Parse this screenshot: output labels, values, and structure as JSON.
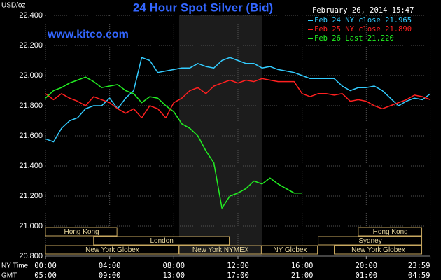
{
  "chart_data": {
    "type": "line",
    "title": "24 Hour Spot Silver (Bid)",
    "subtitle": "www.kitco.com",
    "timestamp": "February 26, 2014 15:47",
    "y_label": "USD/oz",
    "x_label": "NY Time",
    "x2_label": "GMT",
    "title_color": "#3366ff",
    "grid": true,
    "legend": "top-right",
    "xlim": [
      0,
      24
    ],
    "ylim": [
      20.8,
      22.4
    ],
    "yticks": [
      {
        "value": 20.8,
        "label": "20.800"
      },
      {
        "value": 21.0,
        "label": "21.000"
      },
      {
        "value": 21.2,
        "label": "21.200"
      },
      {
        "value": 21.4,
        "label": "21.400"
      },
      {
        "value": 21.6,
        "label": "21.600"
      },
      {
        "value": 21.8,
        "label": "21.800"
      },
      {
        "value": 22.0,
        "label": "22.000"
      },
      {
        "value": 22.2,
        "label": "22.200"
      },
      {
        "value": 22.4,
        "label": "22.400"
      }
    ],
    "xticks": [
      {
        "value": 0,
        "label": "00:00"
      },
      {
        "value": 4,
        "label": "04:00"
      },
      {
        "value": 8,
        "label": "08:00"
      },
      {
        "value": 12,
        "label": "12:00"
      },
      {
        "value": 16,
        "label": "16:00"
      },
      {
        "value": 20,
        "label": "20:00"
      },
      {
        "value": 23.98,
        "label": "23:59"
      }
    ],
    "x2ticks": [
      {
        "value": 0,
        "label": "05:00"
      },
      {
        "value": 4,
        "label": "09:00"
      },
      {
        "value": 8,
        "label": "13:00"
      },
      {
        "value": 12,
        "label": "17:00"
      },
      {
        "value": 16,
        "label": "21:00"
      },
      {
        "value": 20,
        "label": "01:00"
      },
      {
        "value": 23.98,
        "label": "04:59"
      }
    ],
    "sessions": [
      {
        "name": "Hong Kong",
        "start": 0,
        "end": 4.5,
        "row": 0
      },
      {
        "name": "Hong Kong",
        "start": 19.5,
        "end": 23.5,
        "row": 0
      },
      {
        "name": "London",
        "start": 3,
        "end": 11.5,
        "row": 1
      },
      {
        "name": "Sydney",
        "start": 17,
        "end": 23.5,
        "row": 1
      },
      {
        "name": "New York Globex",
        "start": 0,
        "end": 8.333,
        "row": 2
      },
      {
        "name": "New York NYMEX",
        "start": 8.333,
        "end": 13.5,
        "row": 2,
        "shaded": true
      },
      {
        "name": "NY Globex",
        "start": 13.5,
        "end": 17,
        "row": 2
      },
      {
        "name": "New York Globex",
        "start": 18,
        "end": 23.5,
        "row": 2
      }
    ],
    "x": [
      0,
      0.5,
      1,
      1.5,
      2,
      2.5,
      3,
      3.5,
      4,
      4.5,
      5,
      5.5,
      6,
      6.5,
      7,
      7.5,
      8,
      8.5,
      9,
      9.5,
      10,
      10.5,
      11,
      11.5,
      12,
      12.5,
      13,
      13.5,
      14,
      14.5,
      15,
      15.5,
      16,
      16.5,
      17,
      17.5,
      18,
      18.5,
      19,
      19.5,
      20,
      20.5,
      21,
      21.5,
      22,
      22.5,
      23,
      23.5,
      24
    ],
    "series": [
      {
        "name": "Feb 24 NY close 21.965",
        "color": "#33ccff",
        "values": [
          21.58,
          21.56,
          21.65,
          21.7,
          21.72,
          21.78,
          21.8,
          21.8,
          21.85,
          21.78,
          21.85,
          21.9,
          22.12,
          22.1,
          22.02,
          22.03,
          22.04,
          22.05,
          22.05,
          22.08,
          22.06,
          22.05,
          22.1,
          22.12,
          22.1,
          22.08,
          22.08,
          22.05,
          22.06,
          22.04,
          22.03,
          22.02,
          22.0,
          21.98,
          21.98,
          21.98,
          21.98,
          21.93,
          21.9,
          21.92,
          21.92,
          21.93,
          21.9,
          21.85,
          21.8,
          21.83,
          21.85,
          21.84,
          21.88
        ]
      },
      {
        "name": "Feb 25 NY close 21.890",
        "color": "#ff2020",
        "values": [
          21.88,
          21.84,
          21.88,
          21.85,
          21.83,
          21.8,
          21.86,
          21.84,
          21.82,
          21.78,
          21.75,
          21.78,
          21.72,
          21.8,
          21.78,
          21.72,
          21.82,
          21.85,
          21.9,
          21.92,
          21.88,
          21.93,
          21.95,
          21.97,
          21.95,
          21.97,
          21.96,
          21.98,
          21.97,
          21.96,
          21.96,
          21.96,
          21.88,
          21.86,
          21.88,
          21.88,
          21.87,
          21.88,
          21.83,
          21.84,
          21.83,
          21.8,
          21.78,
          21.8,
          21.82,
          21.84,
          21.87,
          21.86,
          21.84
        ]
      },
      {
        "name": "Feb 26 Last 21.220",
        "color": "#22ee22",
        "values": [
          21.85,
          21.9,
          21.92,
          21.95,
          21.97,
          21.99,
          21.96,
          21.92,
          21.93,
          21.94,
          21.9,
          21.88,
          21.82,
          21.86,
          21.85,
          21.8,
          21.76,
          21.68,
          21.65,
          21.6,
          21.5,
          21.42,
          21.12,
          21.2,
          21.22,
          21.25,
          21.3,
          21.28,
          21.32,
          21.28,
          21.25,
          21.22,
          21.22,
          null,
          null,
          null,
          null,
          null,
          null,
          null,
          null,
          null,
          null,
          null,
          null,
          null,
          null,
          null,
          null
        ]
      }
    ]
  }
}
